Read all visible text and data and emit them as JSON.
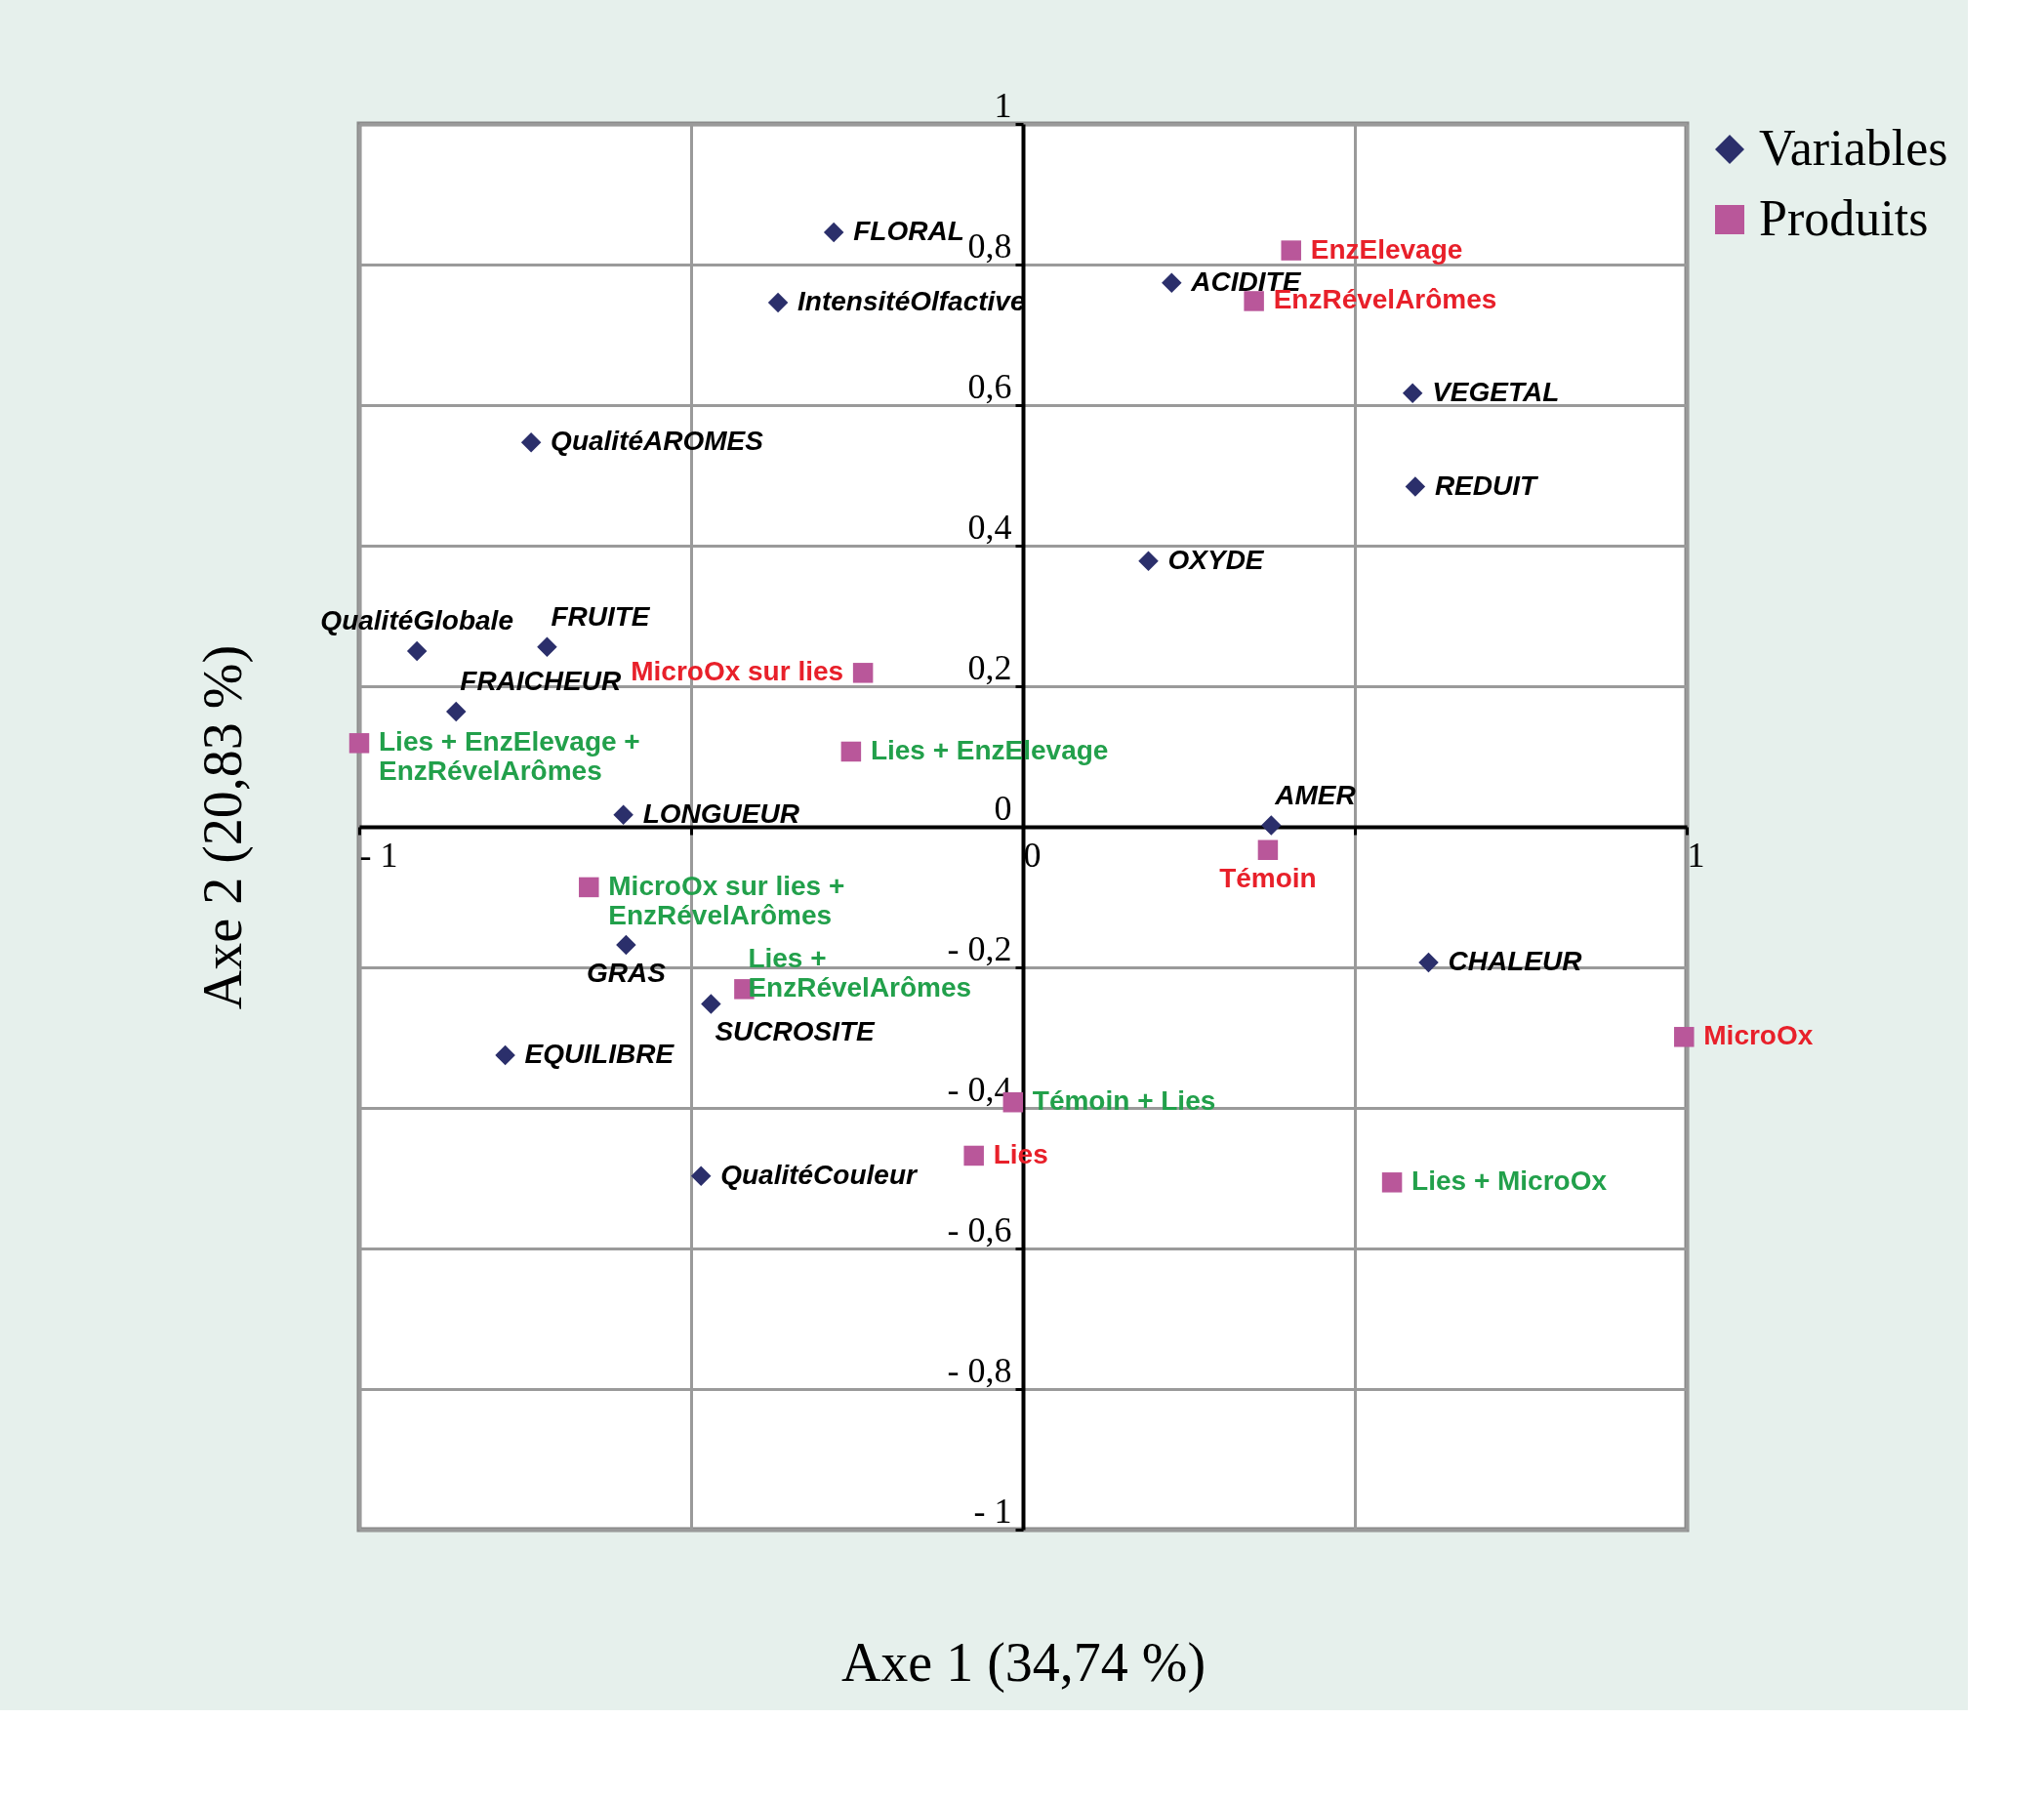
{
  "chart_data": {
    "type": "scatter",
    "xlabel": "Axe 1 (34,74 %)",
    "ylabel": "Axe 2 (20,83 %)",
    "xlim": [
      -1,
      1
    ],
    "ylim": [
      -1,
      1
    ],
    "xticks": [
      {
        "value": -1,
        "label": "- 1"
      },
      {
        "value": -0.5,
        "label": null
      },
      0,
      {
        "value": 0.5,
        "label": null
      },
      1
    ],
    "yticks": [
      {
        "value": -1,
        "label": "- 1"
      },
      {
        "value": -0.8,
        "label": "- 0,8"
      },
      {
        "value": -0.6,
        "label": "- 0,6"
      },
      {
        "value": -0.4,
        "label": "- 0,4"
      },
      {
        "value": -0.2,
        "label": "- 0,2"
      },
      0,
      {
        "value": 0.2,
        "label": "0,2"
      },
      {
        "value": 0.4,
        "label": "0,4"
      },
      {
        "value": 0.6,
        "label": "0,6"
      },
      {
        "value": 0.8,
        "label": "0,8"
      },
      1
    ],
    "grid": true,
    "legend": "right",
    "series": [
      {
        "name": "Variables",
        "color": "#2b2f6b",
        "marker": "diamond",
        "x": [
          -0.285,
          -0.369,
          0.224,
          0.587,
          0.591,
          -0.741,
          0.189,
          -0.913,
          -0.717,
          -0.854,
          -0.602,
          0.374,
          -0.598,
          0.611,
          -0.47,
          -0.78,
          -0.485
        ],
        "values": [
          0.846,
          0.746,
          0.774,
          0.617,
          0.484,
          0.547,
          0.378,
          0.25,
          0.256,
          0.164,
          0.017,
          0.002,
          -0.168,
          -0.193,
          -0.252,
          -0.325,
          -0.497
        ],
        "value_labels": [
          "FLORAL",
          "IntensitéOlfactive",
          "ACIDITE",
          "VEGETAL",
          "REDUIT",
          "QualitéAROMES",
          "OXYDE",
          "QualitéGlobale",
          "FRUITE",
          "FRAICHEUR",
          "LONGUEUR",
          "AMER",
          "GRAS",
          "CHALEUR",
          "SUCROSITE",
          "EQUILIBRE",
          "QualitéCouleur"
        ]
      },
      {
        "name": "Produits",
        "color": "#b9579a",
        "marker": "square",
        "x": [
          0.404,
          0.348,
          -0.241,
          0.369,
          0.996,
          -0.074
        ],
        "values": [
          0.82,
          0.748,
          0.219,
          -0.033,
          -0.299,
          -0.468
        ],
        "value_labels": [
          "EnzElevage",
          "EnzRévelArômes",
          "MicroOx sur lies",
          "Témoin",
          "MicroOx",
          "Lies"
        ]
      },
      {
        "color": "#b9579a",
        "marker": "square",
        "x": [
          -0.259,
          -1.0,
          -0.654,
          -0.42,
          -0.015,
          0.556
        ],
        "values": [
          0.107,
          0.119,
          -0.086,
          -0.231,
          -0.392,
          -0.506
        ],
        "value_labels": [
          "Lies + EnzElevage",
          "Lies + EnzElevage +\nEnzRévelArômes",
          "MicroOx sur lies  +\nEnzRévelArômes",
          "Lies +\nEnzRévelArômes",
          "Témoin + Lies",
          "Lies  +  MicroOx"
        ]
      }
    ]
  }
}
